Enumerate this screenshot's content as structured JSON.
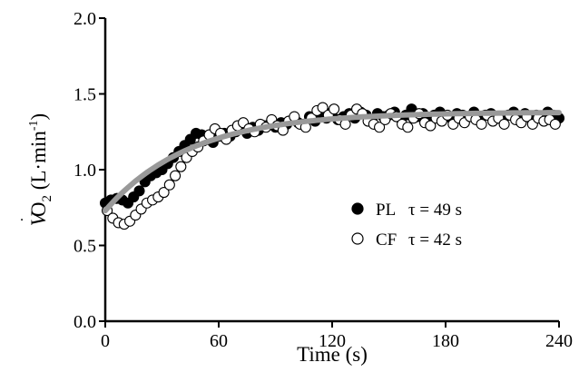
{
  "chart_data": {
    "type": "scatter",
    "title": "",
    "xlabel": "Time (s)",
    "ylabel": {
      "symbol": "V",
      "dot": "˙",
      "subscript_base": "O",
      "subscript": "2",
      "unit_open": "(L·min",
      "unit_exp": "-1",
      "unit_close": ")"
    },
    "xlim": [
      0,
      240
    ],
    "ylim": [
      0.0,
      2.0
    ],
    "xticks": [
      0,
      60,
      120,
      180,
      240
    ],
    "xtick_labels": [
      "0",
      "60",
      "120",
      "180",
      "240"
    ],
    "yticks": [
      0.0,
      0.5,
      1.0,
      1.5,
      2.0
    ],
    "ytick_labels": [
      "0.0",
      "0.5",
      "1.0",
      "1.5",
      "2.0"
    ],
    "grid": false,
    "legend_position": "center-right",
    "series": [
      {
        "name": "PL",
        "tau_label": "τ = 49 s",
        "marker": "filled-circle",
        "color": "#000000",
        "x": [
          0,
          3,
          6,
          9,
          12,
          15,
          18,
          21,
          24,
          27,
          30,
          33,
          36,
          39,
          42,
          45,
          48,
          51,
          54,
          57,
          60,
          63,
          66,
          69,
          72,
          75,
          78,
          81,
          84,
          87,
          90,
          93,
          96,
          99,
          102,
          105,
          108,
          111,
          114,
          117,
          120,
          123,
          126,
          129,
          132,
          135,
          138,
          141,
          144,
          147,
          150,
          153,
          156,
          159,
          162,
          165,
          168,
          171,
          174,
          177,
          180,
          183,
          186,
          189,
          192,
          195,
          198,
          201,
          204,
          207,
          210,
          213,
          216,
          219,
          222,
          225,
          228,
          231,
          234,
          237,
          240
        ],
        "y": [
          0.78,
          0.8,
          0.81,
          0.8,
          0.78,
          0.82,
          0.86,
          0.92,
          0.96,
          0.98,
          1.0,
          1.04,
          1.08,
          1.12,
          1.16,
          1.2,
          1.24,
          1.23,
          1.2,
          1.18,
          1.22,
          1.24,
          1.22,
          1.25,
          1.27,
          1.24,
          1.28,
          1.26,
          1.29,
          1.3,
          1.28,
          1.31,
          1.3,
          1.33,
          1.31,
          1.3,
          1.35,
          1.32,
          1.36,
          1.34,
          1.38,
          1.33,
          1.35,
          1.37,
          1.34,
          1.38,
          1.36,
          1.33,
          1.37,
          1.35,
          1.36,
          1.38,
          1.34,
          1.36,
          1.4,
          1.35,
          1.37,
          1.33,
          1.36,
          1.38,
          1.35,
          1.34,
          1.37,
          1.36,
          1.35,
          1.38,
          1.34,
          1.36,
          1.37,
          1.35,
          1.33,
          1.36,
          1.38,
          1.35,
          1.37,
          1.34,
          1.36,
          1.35,
          1.38,
          1.36,
          1.34
        ]
      },
      {
        "name": "CF",
        "tau_label": "τ = 42 s",
        "marker": "open-circle",
        "color": "#000000",
        "x": [
          1,
          4,
          7,
          10,
          13,
          16,
          19,
          22,
          25,
          28,
          31,
          34,
          37,
          40,
          43,
          46,
          49,
          52,
          55,
          58,
          61,
          64,
          67,
          70,
          73,
          76,
          79,
          82,
          85,
          88,
          91,
          94,
          97,
          100,
          103,
          106,
          109,
          112,
          115,
          118,
          121,
          124,
          127,
          130,
          133,
          136,
          139,
          142,
          145,
          148,
          151,
          154,
          157,
          160,
          163,
          166,
          169,
          172,
          175,
          178,
          181,
          184,
          187,
          190,
          193,
          196,
          199,
          202,
          205,
          208,
          211,
          214,
          217,
          220,
          223,
          226,
          229,
          232,
          235,
          238
        ],
        "y": [
          0.73,
          0.68,
          0.65,
          0.64,
          0.66,
          0.7,
          0.74,
          0.78,
          0.8,
          0.82,
          0.85,
          0.9,
          0.96,
          1.02,
          1.08,
          1.12,
          1.15,
          1.19,
          1.23,
          1.27,
          1.24,
          1.2,
          1.26,
          1.29,
          1.31,
          1.27,
          1.25,
          1.3,
          1.28,
          1.33,
          1.29,
          1.26,
          1.32,
          1.35,
          1.3,
          1.28,
          1.34,
          1.39,
          1.41,
          1.36,
          1.4,
          1.33,
          1.3,
          1.36,
          1.4,
          1.37,
          1.32,
          1.3,
          1.28,
          1.33,
          1.37,
          1.35,
          1.3,
          1.28,
          1.34,
          1.37,
          1.31,
          1.29,
          1.34,
          1.32,
          1.36,
          1.3,
          1.34,
          1.31,
          1.35,
          1.33,
          1.3,
          1.36,
          1.32,
          1.34,
          1.3,
          1.36,
          1.33,
          1.31,
          1.35,
          1.3,
          1.34,
          1.32,
          1.33,
          1.3
        ]
      }
    ],
    "fit": {
      "name": "fit",
      "color": "#999999",
      "baseline": 0.73,
      "amplitude": 0.65,
      "tau": 45
    }
  }
}
